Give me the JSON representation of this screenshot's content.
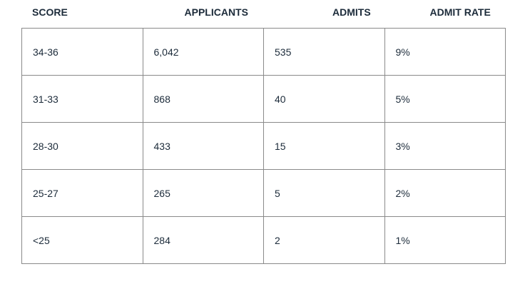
{
  "table": {
    "headers": [
      "SCORE",
      "APPLICANTS",
      "ADMITS",
      "ADMIT RATE"
    ],
    "rows": [
      [
        "34-36",
        "6,042",
        "535",
        "9%"
      ],
      [
        "31-33",
        "868",
        "40",
        "5%"
      ],
      [
        "28-30",
        "433",
        "15",
        "3%"
      ],
      [
        "25-27",
        "265",
        "5",
        "2%"
      ],
      [
        "<25",
        "284",
        "2",
        "1%"
      ]
    ]
  }
}
